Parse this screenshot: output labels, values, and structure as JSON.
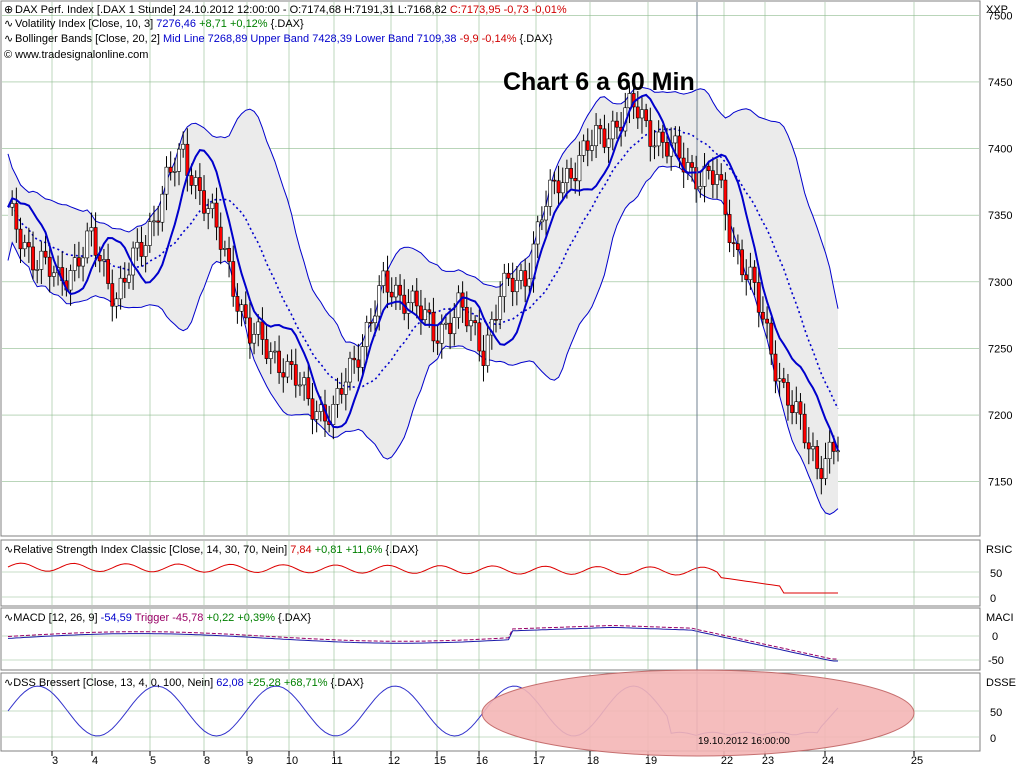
{
  "header": {
    "dax_title": "DAX Perf. Index [.DAX  1 Stunde] 24.10.2012 12:00:00 - O:7174,68 H:7191,31 L:7168,82",
    "dax_close": "C:7173,95 -0,73 -0,01%",
    "vol_title": "Volatility Index [Close, 10, 3]",
    "vol_value": "7276,46",
    "vol_change": "+8,71 +0,12%",
    "vol_src": "{.DAX}",
    "bb_title": "Bollinger Bands [Close, 20, 2]",
    "bb_values": "Mid Line 7268,89 Upper Band 7428,39 Lower Band 7109,38",
    "bb_change": "-9,9 -0,14%",
    "bb_src": "{.DAX}",
    "copyright": "© www.tradesignalonline.com",
    "big_title": "Chart 6 a 60 Min"
  },
  "panels": {
    "rsi": {
      "title": "Relative Strength Index Classic [Close, 14, 30, 70, Nein]",
      "value": "7,84",
      "change": "+0,81 +11,6%",
      "src": "{.DAX}",
      "axis": "RSIC",
      "ticks": [
        "50",
        "0"
      ]
    },
    "macd": {
      "title": "MACD [12, 26, 9]",
      "value": "-54,59",
      "trigger": "Trigger -45,78",
      "change": "+0,22 +0,39%",
      "src": "{.DAX}",
      "axis": "MACI",
      "ticks": [
        "0",
        "-50"
      ]
    },
    "dss": {
      "title": "DSS Bressert [Close, 13, 4, 0, 100, Nein]",
      "value": "62,08",
      "change": "+25,28 +68,71%",
      "src": "{.DAX}",
      "axis": "DSSE",
      "ticks": [
        "50",
        "0"
      ],
      "cursor_label": "19.10.2012 16:00:00"
    }
  },
  "chart_data": {
    "type": "candlestick",
    "title": "Chart 6 a 60 Min",
    "ylabel": "XXP",
    "ylim": [
      7110,
      7510
    ],
    "yticks": [
      "7500",
      "7450",
      "7400",
      "7350",
      "7300",
      "7250",
      "7200",
      "7150"
    ],
    "x_date_labels": [
      "3",
      "4",
      "5",
      "8",
      "9",
      "10",
      "11",
      "12",
      "15",
      "16",
      "17",
      "18",
      "19",
      "22",
      "23",
      "24",
      "25"
    ],
    "colors": {
      "band": "#0000cc",
      "band_fill": "#ebebeb",
      "down_candle": "#ff0000",
      "up_candle": "#ffffff",
      "rsi_line": "#dd0000",
      "macd_trigger": "#990066",
      "dss_line": "#3333cc",
      "highlight_ellipse": "#f4b6b6",
      "grid": "#8fbc8f",
      "cursor": "#708090",
      "value_up": "#008000",
      "value_down": "#d00000"
    }
  }
}
